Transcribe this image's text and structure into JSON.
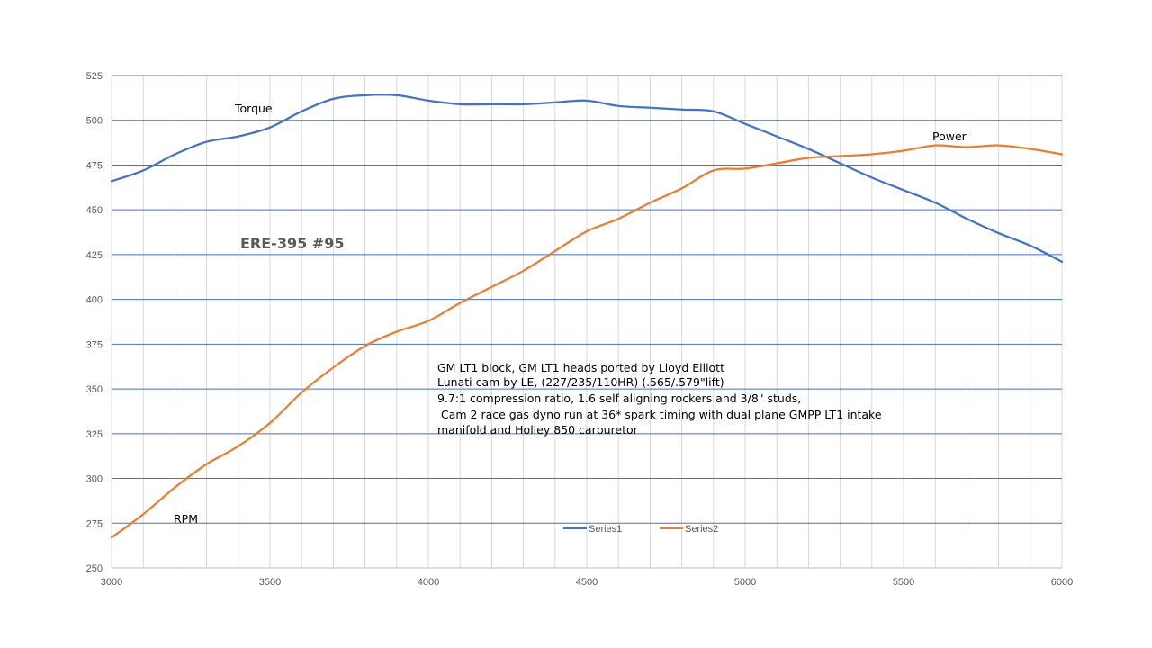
{
  "chart_data": {
    "type": "line",
    "title": "ERE-395 #95",
    "xlabel": "",
    "ylabel": "",
    "xlim": [
      3000,
      6000
    ],
    "ylim": [
      250,
      525
    ],
    "x_ticks": [
      "3000",
      "3500",
      "4000",
      "4500",
      "5000",
      "5500",
      "6000"
    ],
    "y_ticks": [
      "250",
      "275",
      "300",
      "325",
      "350",
      "375",
      "400",
      "425",
      "450",
      "475",
      "500",
      "525"
    ],
    "grid": true,
    "legend_position": "bottom-center",
    "annotations": {
      "torque": "Torque",
      "power": "Power",
      "rpm": "RPM"
    },
    "notes": [
      "GM LT1 block, GM LT1 heads ported by Lloyd Elliott",
      "Lunati cam by LE, (227/235/110HR)  (.565/.579\"lift)",
      "9.7:1 compression ratio, 1.6 self aligning rockers and 3/8\" studs,",
      " Cam 2 race gas dyno run at 36* spark timing with dual plane GMPP LT1 intake",
      "manifold and Holley 850 carburetor"
    ],
    "series": [
      {
        "name": "Series1",
        "color": "#4472c4",
        "x": [
          3000,
          3100,
          3200,
          3300,
          3400,
          3500,
          3600,
          3700,
          3800,
          3900,
          4000,
          4100,
          4200,
          4300,
          4400,
          4500,
          4600,
          4700,
          4800,
          4900,
          5000,
          5100,
          5200,
          5300,
          5400,
          5500,
          5600,
          5700,
          5800,
          5900,
          6000
        ],
        "values": [
          466,
          472,
          481,
          488,
          491,
          496,
          505,
          512,
          514,
          514,
          511,
          509,
          509,
          509,
          510,
          511,
          508,
          507,
          506,
          505,
          498,
          491,
          484,
          476,
          468,
          461,
          454,
          445,
          437,
          430,
          421
        ]
      },
      {
        "name": "Series2",
        "color": "#ed7d31",
        "x": [
          3000,
          3100,
          3200,
          3300,
          3400,
          3500,
          3600,
          3700,
          3800,
          3900,
          4000,
          4100,
          4200,
          4300,
          4400,
          4500,
          4600,
          4700,
          4800,
          4900,
          5000,
          5100,
          5200,
          5300,
          5400,
          5500,
          5600,
          5700,
          5800,
          5900,
          6000
        ],
        "values": [
          267,
          280,
          295,
          308,
          318,
          331,
          348,
          362,
          374,
          382,
          388,
          398,
          407,
          416,
          427,
          438,
          445,
          454,
          462,
          472,
          473,
          476,
          479,
          480,
          481,
          483,
          486,
          485,
          486,
          484,
          481
        ]
      }
    ]
  }
}
